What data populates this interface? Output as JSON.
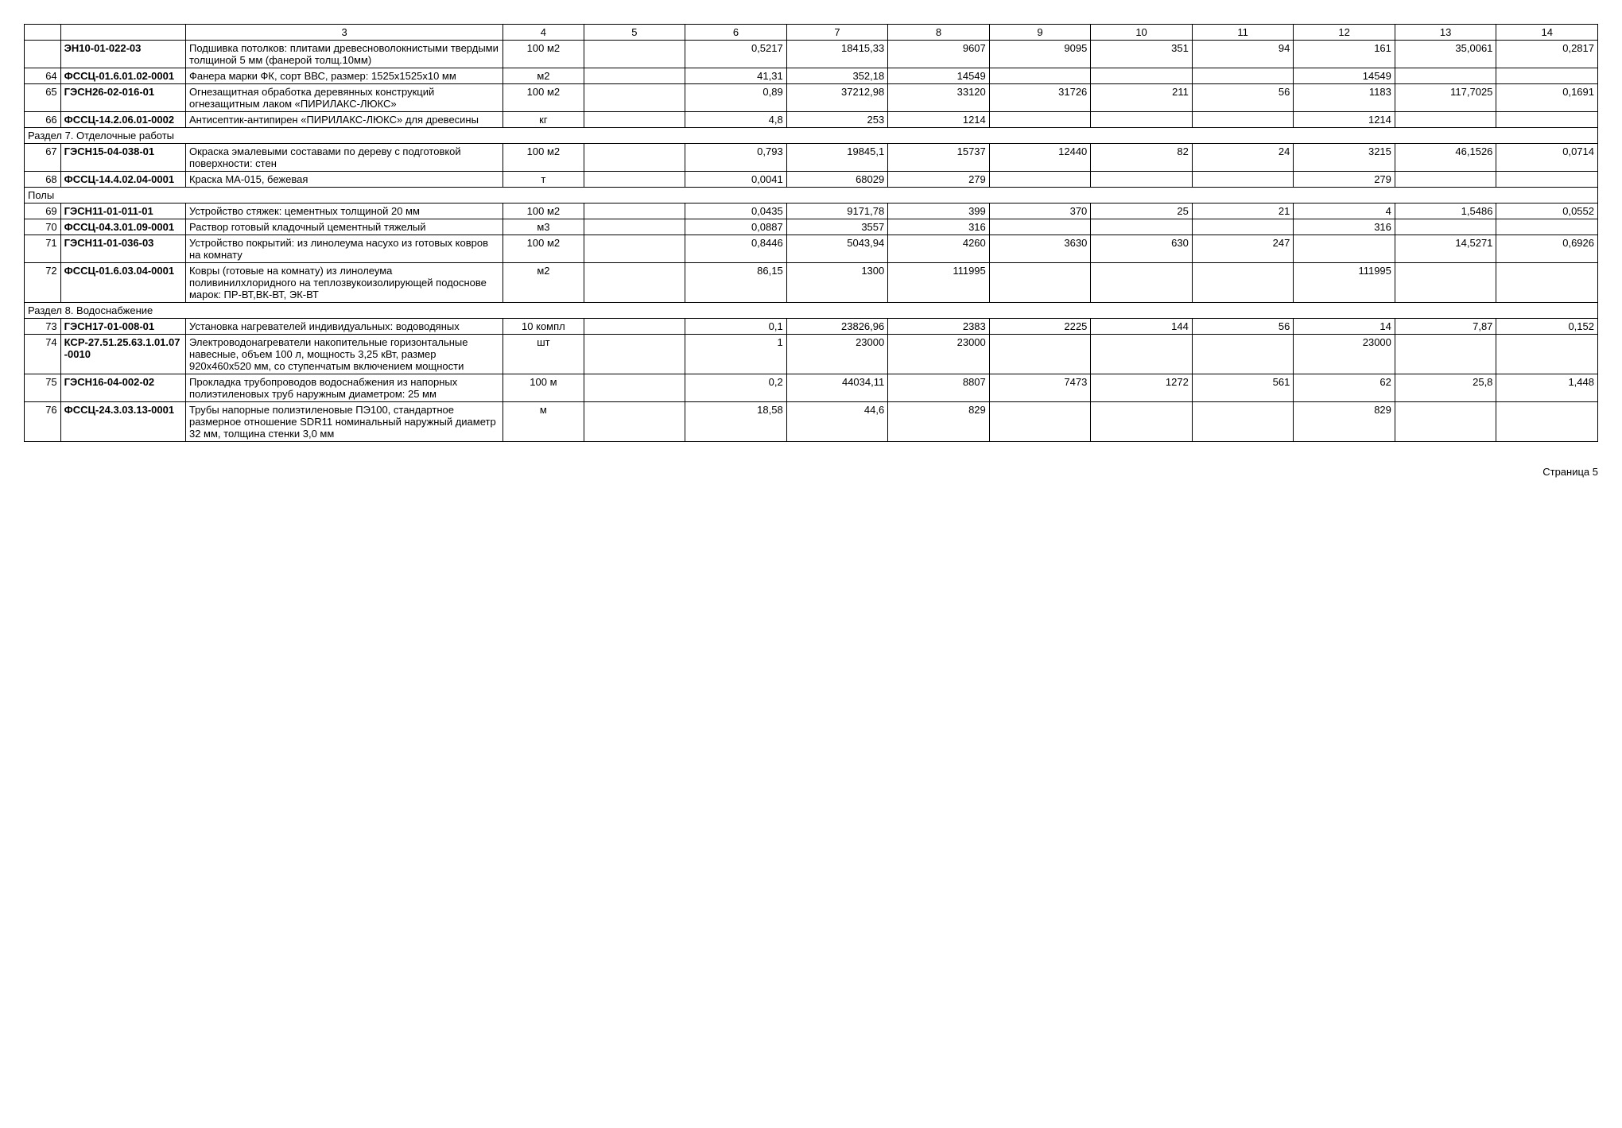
{
  "headers": [
    "",
    "",
    "3",
    "4",
    "5",
    "6",
    "7",
    "8",
    "9",
    "10",
    "11",
    "12",
    "13",
    "14"
  ],
  "rows": [
    {
      "type": "data",
      "num": "",
      "code": "ЭН10-01-022-03",
      "desc": "Подшивка потолков: плитами древесноволокнистыми твердыми толщиной 5 мм (фанерой толщ.10мм)",
      "unit": "100 м2",
      "c5": "",
      "c6": "0,5217",
      "c7": "18415,33",
      "c8": "9607",
      "c9": "9095",
      "c10": "351",
      "c11": "94",
      "c12": "161",
      "c13": "35,0061",
      "c14": "0,2817"
    },
    {
      "type": "data",
      "num": "64",
      "code": "ФССЦ-01.6.01.02-0001",
      "desc": "Фанера марки ФК, сорт ВВС, размер: 1525х1525х10 мм",
      "unit": "м2",
      "c5": "",
      "c6": "41,31",
      "c7": "352,18",
      "c8": "14549",
      "c9": "",
      "c10": "",
      "c11": "",
      "c12": "14549",
      "c13": "",
      "c14": ""
    },
    {
      "type": "data",
      "num": "65",
      "code": "ГЭСН26-02-016-01",
      "desc": "Огнезащитная обработка деревянных конструкций огнезащитным лаком «ПИРИЛАКС-ЛЮКС»",
      "unit": "100 м2",
      "c5": "",
      "c6": "0,89",
      "c7": "37212,98",
      "c8": "33120",
      "c9": "31726",
      "c10": "211",
      "c11": "56",
      "c12": "1183",
      "c13": "117,7025",
      "c14": "0,1691"
    },
    {
      "type": "data",
      "num": "66",
      "code": "ФССЦ-14.2.06.01-0002",
      "desc": "Антисептик-антипирен «ПИРИЛАКС-ЛЮКС» для древесины",
      "unit": "кг",
      "c5": "",
      "c6": "4,8",
      "c7": "253",
      "c8": "1214",
      "c9": "",
      "c10": "",
      "c11": "",
      "c12": "1214",
      "c13": "",
      "c14": ""
    },
    {
      "type": "section",
      "label": "Раздел 7. Отделочные работы"
    },
    {
      "type": "data",
      "num": "67",
      "code": "ГЭСН15-04-038-01",
      "desc": "Окраска эмалевыми составами по дереву с подготовкой поверхности: стен",
      "unit": "100 м2",
      "c5": "",
      "c6": "0,793",
      "c7": "19845,1",
      "c8": "15737",
      "c9": "12440",
      "c10": "82",
      "c11": "24",
      "c12": "3215",
      "c13": "46,1526",
      "c14": "0,0714"
    },
    {
      "type": "data",
      "num": "68",
      "code": "ФССЦ-14.4.02.04-0001",
      "desc": "Краска МА-015, бежевая",
      "unit": "т",
      "c5": "",
      "c6": "0,0041",
      "c7": "68029",
      "c8": "279",
      "c9": "",
      "c10": "",
      "c11": "",
      "c12": "279",
      "c13": "",
      "c14": ""
    },
    {
      "type": "section",
      "label": "Полы"
    },
    {
      "type": "data",
      "num": "69",
      "code": "ГЭСН11-01-011-01",
      "desc": "Устройство стяжек: цементных толщиной 20 мм",
      "unit": "100 м2",
      "c5": "",
      "c6": "0,0435",
      "c7": "9171,78",
      "c8": "399",
      "c9": "370",
      "c10": "25",
      "c11": "21",
      "c12": "4",
      "c13": "1,5486",
      "c14": "0,0552"
    },
    {
      "type": "data",
      "num": "70",
      "code": "ФССЦ-04.3.01.09-0001",
      "desc": "Раствор готовый кладочный цементный тяжелый",
      "unit": "м3",
      "c5": "",
      "c6": "0,0887",
      "c7": "3557",
      "c8": "316",
      "c9": "",
      "c10": "",
      "c11": "",
      "c12": "316",
      "c13": "",
      "c14": ""
    },
    {
      "type": "data",
      "num": "71",
      "code": "ГЭСН11-01-036-03",
      "desc": "Устройство покрытий: из линолеума насухо из готовых ковров на комнату",
      "unit": "100 м2",
      "c5": "",
      "c6": "0,8446",
      "c7": "5043,94",
      "c8": "4260",
      "c9": "3630",
      "c10": "630",
      "c11": "247",
      "c12": "",
      "c13": "14,5271",
      "c14": "0,6926"
    },
    {
      "type": "data",
      "num": "72",
      "code": "ФССЦ-01.6.03.04-0001",
      "desc": "Ковры (готовые на комнату) из линолеума поливинилхлоридного на теплозвукоизолирующей подоснове марок: ПР-ВТ,ВК-ВТ, ЭК-ВТ",
      "unit": "м2",
      "c5": "",
      "c6": "86,15",
      "c7": "1300",
      "c8": "111995",
      "c9": "",
      "c10": "",
      "c11": "",
      "c12": "111995",
      "c13": "",
      "c14": ""
    },
    {
      "type": "section",
      "label": "Раздел 8. Водоснабжение"
    },
    {
      "type": "data",
      "num": "73",
      "code": "ГЭСН17-01-008-01",
      "desc": "Установка нагревателей индивидуальных: водоводяных",
      "unit": "10 компл",
      "c5": "",
      "c6": "0,1",
      "c7": "23826,96",
      "c8": "2383",
      "c9": "2225",
      "c10": "144",
      "c11": "56",
      "c12": "14",
      "c13": "7,87",
      "c14": "0,152"
    },
    {
      "type": "data",
      "num": "74",
      "code": "КСР-27.51.25.63.1.01.07-0010",
      "desc": "Электроводонагреватели накопительные горизонтальные навесные, объем 100 л, мощность 3,25 кВт, размер 920х460х520 мм, со ступенчатым включением мощности",
      "unit": "шт",
      "c5": "",
      "c6": "1",
      "c7": "23000",
      "c8": "23000",
      "c9": "",
      "c10": "",
      "c11": "",
      "c12": "23000",
      "c13": "",
      "c14": ""
    },
    {
      "type": "data",
      "num": "75",
      "code": "ГЭСН16-04-002-02",
      "desc": "Прокладка трубопроводов водоснабжения из напорных полиэтиленовых труб наружным диаметром: 25 мм",
      "unit": "100 м",
      "c5": "",
      "c6": "0,2",
      "c7": "44034,11",
      "c8": "8807",
      "c9": "7473",
      "c10": "1272",
      "c11": "561",
      "c12": "62",
      "c13": "25,8",
      "c14": "1,448"
    },
    {
      "type": "data",
      "num": "76",
      "code": "ФССЦ-24.3.03.13-0001",
      "desc": "Трубы напорные полиэтиленовые ПЭ100, стандартное размерное отношение SDR11 номинальный наружный диаметр 32 мм, толщина стенки 3,0 мм",
      "unit": "м",
      "c5": "",
      "c6": "18,58",
      "c7": "44,6",
      "c8": "829",
      "c9": "",
      "c10": "",
      "c11": "",
      "c12": "829",
      "c13": "",
      "c14": ""
    }
  ],
  "page_number": "Страница 5"
}
